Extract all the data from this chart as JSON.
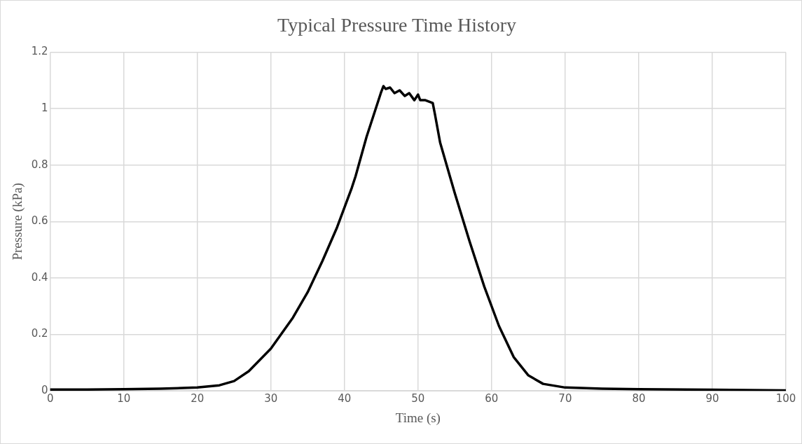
{
  "chart_data": {
    "type": "line",
    "title": "Typical Pressure Time History",
    "xlabel": "Time (s)",
    "ylabel": "Pressure (kPa)",
    "xlim": [
      0,
      100
    ],
    "xticks": [
      0,
      10,
      20,
      30,
      40,
      50,
      60,
      70,
      80,
      90,
      100
    ],
    "ylim": [
      0,
      1.2
    ],
    "yticks": [
      0,
      0.2,
      0.4,
      0.6,
      0.8,
      1,
      1.2
    ],
    "grid": true,
    "marker": "none",
    "line_style": "solid",
    "series": [
      {
        "color": "#000000",
        "x": [
          0,
          5,
          10,
          15,
          20,
          23,
          25,
          27,
          30,
          33,
          35,
          37,
          39,
          41,
          41.5,
          43,
          45,
          45.3,
          45.6,
          46.2,
          46.8,
          47.5,
          48.2,
          48.8,
          49.5,
          50,
          50.3,
          51,
          52,
          52.3,
          53,
          55,
          57,
          59,
          61,
          63,
          65,
          67,
          70,
          75,
          80,
          90,
          100
        ],
        "values": [
          0.005,
          0.005,
          0.006,
          0.008,
          0.012,
          0.02,
          0.035,
          0.07,
          0.15,
          0.26,
          0.35,
          0.46,
          0.58,
          0.72,
          0.76,
          0.9,
          1.06,
          1.08,
          1.07,
          1.075,
          1.055,
          1.065,
          1.045,
          1.055,
          1.03,
          1.05,
          1.03,
          1.03,
          1.02,
          0.98,
          0.88,
          0.7,
          0.53,
          0.37,
          0.23,
          0.12,
          0.055,
          0.025,
          0.012,
          0.008,
          0.006,
          0.004,
          0.002
        ]
      }
    ]
  }
}
